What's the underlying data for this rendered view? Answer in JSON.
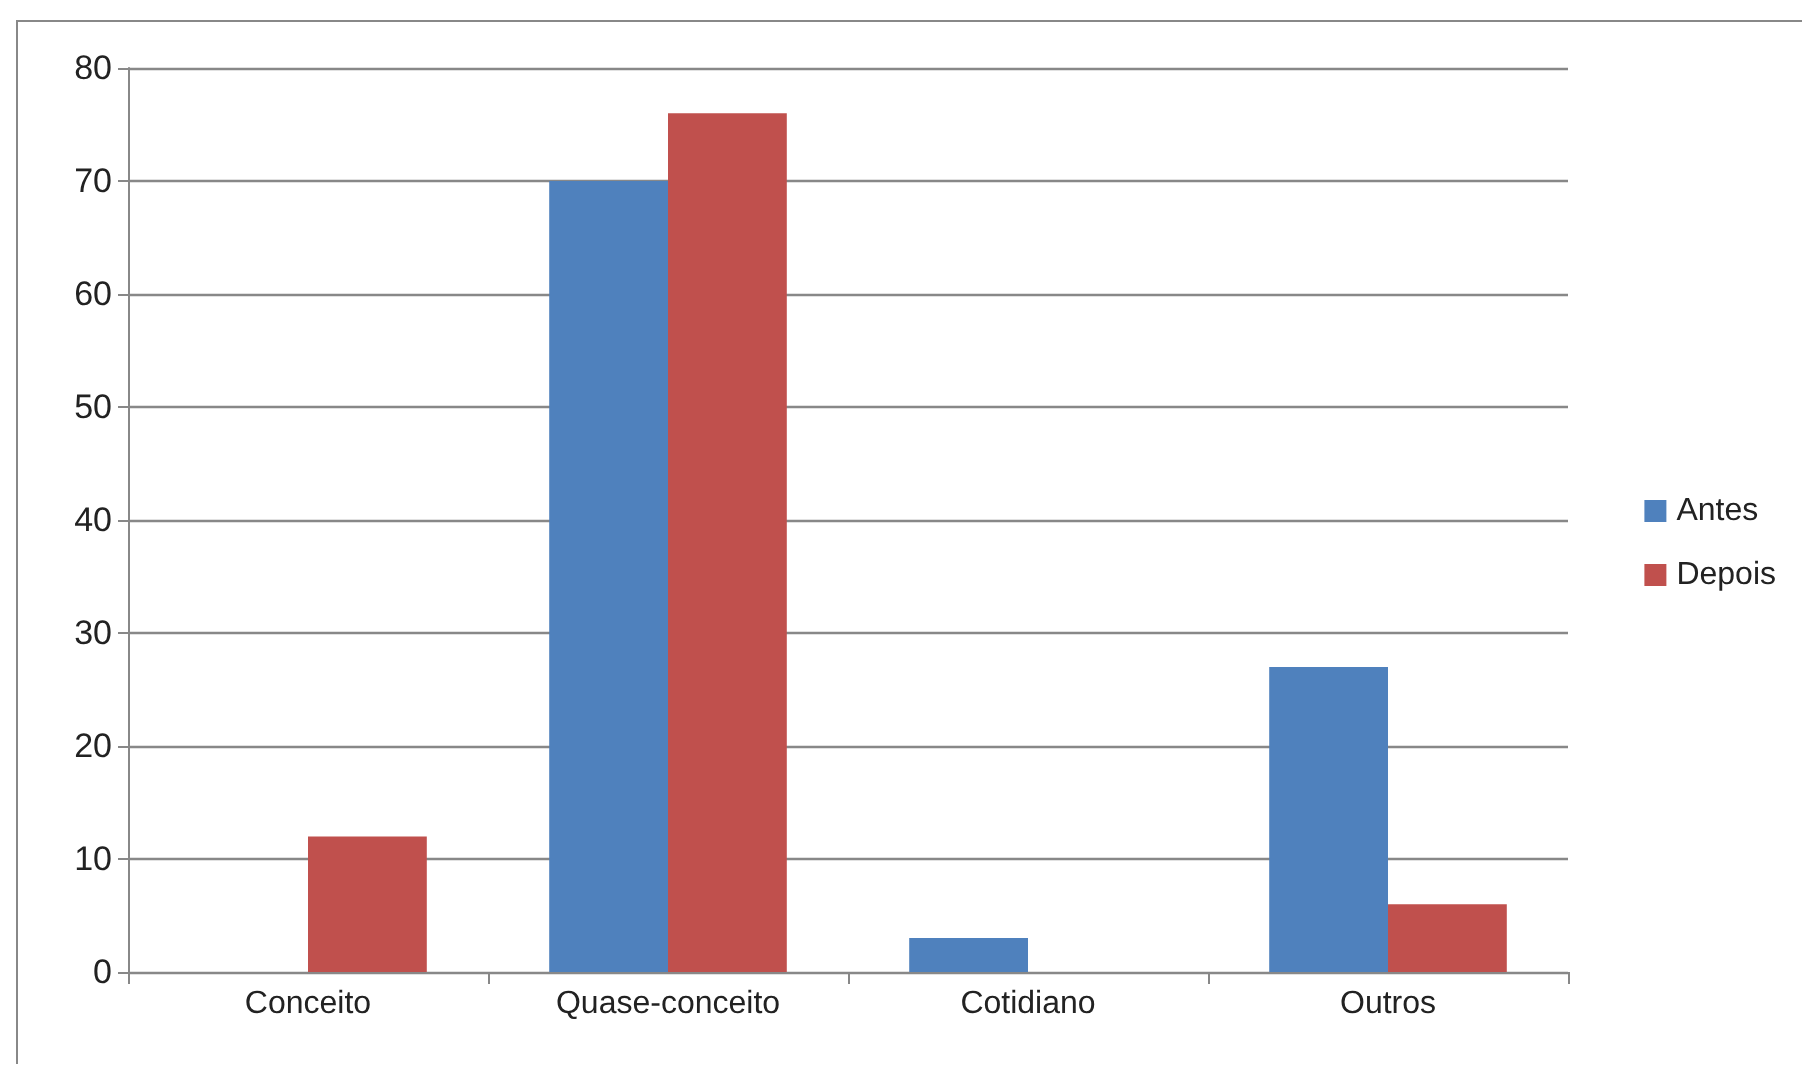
{
  "chart_data": {
    "type": "bar",
    "categories": [
      "Conceito",
      "Quase-conceito",
      "Cotidiano",
      "Outros"
    ],
    "series": [
      {
        "name": "Antes",
        "color": "#4f81bd",
        "values": [
          0,
          70,
          3,
          27
        ]
      },
      {
        "name": "Depois",
        "color": "#c0504d",
        "values": [
          12,
          76,
          0,
          6
        ]
      }
    ],
    "ylim": [
      0,
      80
    ],
    "yticks": [
      0,
      10,
      20,
      30,
      40,
      50,
      60,
      70,
      80
    ],
    "grid": "y",
    "legend": "right"
  }
}
